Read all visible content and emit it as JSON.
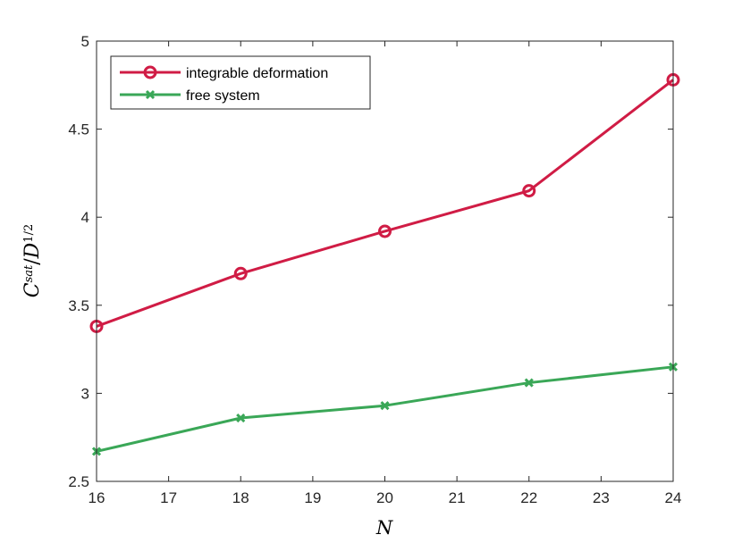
{
  "chart_data": {
    "type": "line",
    "x": [
      16,
      18,
      20,
      22,
      24
    ],
    "series": [
      {
        "name": "integrable deformation",
        "values": [
          3.38,
          3.68,
          3.92,
          4.15,
          4.78
        ],
        "color": "#d01c45",
        "marker": "circle"
      },
      {
        "name": "free system",
        "values": [
          2.67,
          2.86,
          2.93,
          3.06,
          3.15
        ],
        "color": "#3aa757",
        "marker": "x"
      }
    ],
    "xlim": [
      16,
      24
    ],
    "ylim": [
      2.5,
      5
    ],
    "xticks": [
      16,
      17,
      18,
      19,
      20,
      21,
      22,
      23,
      24
    ],
    "yticks": [
      2.5,
      3,
      3.5,
      4,
      4.5,
      5
    ],
    "xtick_labels": [
      "16",
      "17",
      "18",
      "19",
      "20",
      "21",
      "22",
      "23",
      "24"
    ],
    "ytick_labels": [
      "2.5",
      "3",
      "3.5",
      "4",
      "4.5",
      "5"
    ],
    "xlabel": "N",
    "ylabel": {
      "main": "C",
      "sup": "sat",
      "sep": "/",
      "den": "D",
      "den_sup": "1/2"
    },
    "legend_position": "top-left",
    "grid": false
  }
}
